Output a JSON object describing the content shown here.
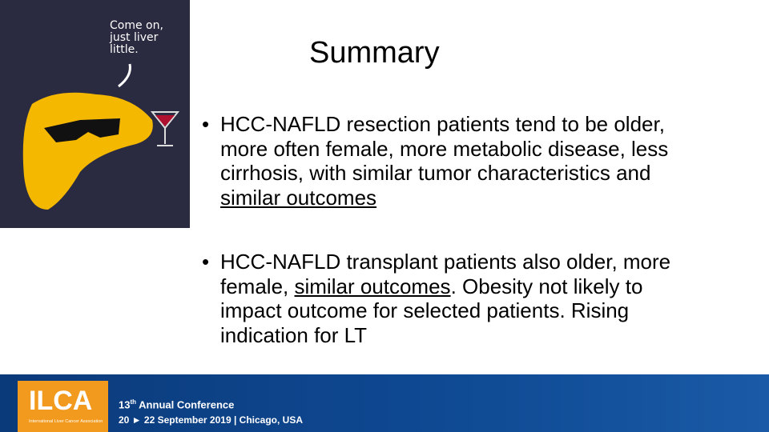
{
  "image": {
    "caption": [
      "Come on,",
      "just liver",
      "little."
    ]
  },
  "title": "Summary",
  "bullets": [
    {
      "segments": [
        {
          "text": "HCC-NAFLD resection patients tend to be older, more often female, more metabolic disease, less cirrhosis, with similar tumor characteristics and ",
          "underline": false
        },
        {
          "text": "similar outcomes",
          "underline": true
        }
      ]
    },
    {
      "segments": [
        {
          "text": "HCC-NAFLD transplant patients also older, more female, ",
          "underline": false
        },
        {
          "text": "similar outcomes",
          "underline": true
        },
        {
          "text": ". Obesity not likely to impact outcome for selected patients.  Rising indication for LT",
          "underline": false
        }
      ]
    }
  ],
  "footer": {
    "logo": "ILCA",
    "organization": "International Liver Cancer Association",
    "conference": {
      "number": "13",
      "suffix": "th",
      "rest": "Annual Conference"
    },
    "dates": "20 ► 22 September 2019 | Chicago, USA"
  }
}
